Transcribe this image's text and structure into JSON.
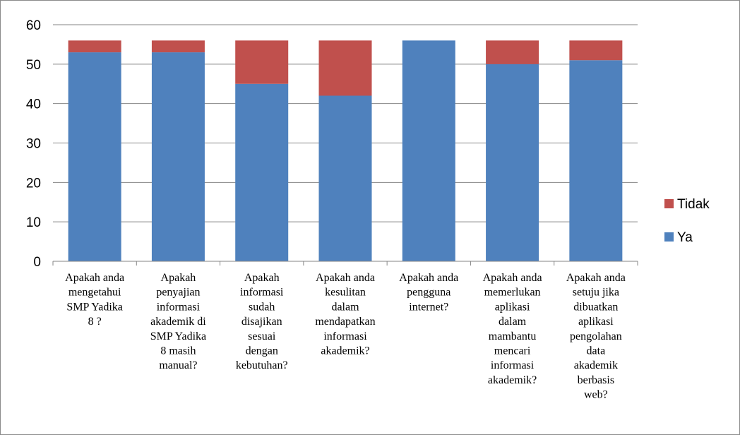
{
  "chart_data": {
    "type": "bar",
    "stacked": true,
    "categories": [
      "Apakah anda mengetahui SMP Yadika 8 ?",
      "Apakah penyajian informasi akademik di SMP Yadika 8 masih manual?",
      "Apakah informasi sudah disajikan sesuai dengan kebutuhan?",
      "Apakah anda kesulitan dalam mendapatkan informasi akademik?",
      "Apakah anda pengguna internet?",
      "Apakah anda memerlukan aplikasi dalam mambantu mencari informasi akademik?",
      "Apakah anda setuju jika dibuatkan aplikasi pengolahan data akademik berbasis web?"
    ],
    "category_lines": [
      [
        "Apakah anda",
        "mengetahui",
        "SMP Yadika",
        "8 ?"
      ],
      [
        "Apakah",
        "penyajian",
        "informasi",
        "akademik di",
        "SMP Yadika",
        "8 masih",
        "manual?"
      ],
      [
        "Apakah",
        "informasi",
        "sudah",
        "disajikan",
        "sesuai",
        "dengan",
        "kebutuhan?"
      ],
      [
        "Apakah anda",
        "kesulitan",
        "dalam",
        "mendapatkan",
        "informasi",
        "akademik?"
      ],
      [
        "Apakah anda",
        "pengguna",
        "internet?"
      ],
      [
        "Apakah anda",
        "memerlukan",
        "aplikasi",
        "dalam",
        "mambantu",
        "mencari",
        "informasi",
        "akademik?"
      ],
      [
        "Apakah anda",
        "setuju jika",
        "dibuatkan",
        "aplikasi",
        "pengolahan",
        "data",
        "akademik",
        "berbasis",
        "web?"
      ]
    ],
    "series": [
      {
        "name": "Ya",
        "values": [
          53,
          53,
          45,
          42,
          56,
          50,
          51
        ],
        "color": "#4f81bd"
      },
      {
        "name": "Tidak",
        "values": [
          3,
          3,
          11,
          14,
          0,
          6,
          5
        ],
        "color": "#c0504d"
      }
    ],
    "yticks": [
      0,
      10,
      20,
      30,
      40,
      50,
      60
    ],
    "ylim": [
      0,
      60
    ],
    "grid": true,
    "legend_position": "right",
    "legend_order": [
      "Tidak",
      "Ya"
    ],
    "axis_color": "#868686",
    "grid_color": "#868686"
  }
}
